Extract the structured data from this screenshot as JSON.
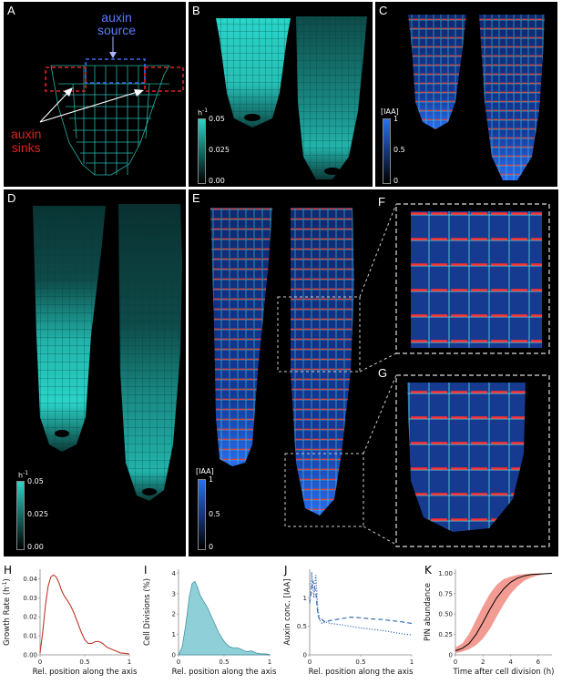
{
  "panels": {
    "A": {
      "label": "A",
      "auxin_source": [
        "auxin",
        "source"
      ],
      "auxin_sinks": [
        "auxin",
        "sinks"
      ]
    },
    "B": {
      "label": "B",
      "colorbar_title": "h",
      "colorbar_sup": "-1",
      "ticks": [
        "0.05",
        "0.025",
        "0.00"
      ]
    },
    "C": {
      "label": "C",
      "colorbar_title": "[IAA]",
      "ticks": [
        "1",
        "0.5",
        "0"
      ]
    },
    "D": {
      "label": "D",
      "colorbar_title": "h",
      "colorbar_sup": "-1",
      "ticks": [
        "0.05",
        "0.025",
        "0.00"
      ]
    },
    "E": {
      "label": "E",
      "colorbar_title": "[IAA]",
      "ticks": [
        "1",
        "0.5",
        "0"
      ]
    },
    "F": {
      "label": "F"
    },
    "G": {
      "label": "G"
    }
  },
  "colors": {
    "cyan": "#2ad4c8",
    "blue": "#1e5ad8",
    "red_box": "#e02020",
    "blue_box": "#3c6cf0",
    "red_line": "#c0392b",
    "teal_fill": "#8ecfd8",
    "blue_line": "#3a6fb0"
  },
  "chart_data": [
    {
      "id": "H",
      "label": "H",
      "type": "line",
      "xlabel": "Rel. position along the axis",
      "ylabel": "Growth Rate (h",
      "ylabel_sup": "-1",
      "ylabel_tail": ")",
      "xlim": [
        0,
        1
      ],
      "ylim": [
        0,
        0.045
      ],
      "xticks": [
        "0",
        "0.5",
        "1"
      ],
      "yticks": [
        "0.00",
        "0.01",
        "0.02",
        "0.03",
        "0.04"
      ],
      "series": [
        {
          "x": [
            0,
            0.03,
            0.06,
            0.09,
            0.12,
            0.15,
            0.18,
            0.21,
            0.24,
            0.27,
            0.3,
            0.34,
            0.38,
            0.42,
            0.46,
            0.5,
            0.54,
            0.58,
            0.62,
            0.66,
            0.7,
            0.75,
            0.8,
            0.85,
            0.9,
            0.95,
            1.0
          ],
          "y": [
            0.001,
            0.012,
            0.026,
            0.036,
            0.041,
            0.042,
            0.041,
            0.038,
            0.034,
            0.031,
            0.029,
            0.026,
            0.022,
            0.017,
            0.012,
            0.008,
            0.006,
            0.006,
            0.007,
            0.007,
            0.006,
            0.004,
            0.003,
            0.002,
            0.001,
            0.0008,
            0.0005
          ]
        }
      ]
    },
    {
      "id": "I",
      "label": "I",
      "type": "area",
      "xlabel": "Rel. position along the axis",
      "ylabel": "Cell Divisions (%)",
      "xlim": [
        0,
        1
      ],
      "ylim": [
        0,
        4.2
      ],
      "xticks": [
        "0",
        "0.5",
        "1"
      ],
      "yticks": [
        "0",
        "1",
        "2",
        "3",
        "4"
      ],
      "series": [
        {
          "x": [
            0,
            0.04,
            0.08,
            0.12,
            0.15,
            0.18,
            0.21,
            0.24,
            0.28,
            0.32,
            0.36,
            0.4,
            0.44,
            0.48,
            0.52,
            0.56,
            0.6,
            0.65,
            0.7,
            0.75,
            0.8,
            0.85,
            0.9,
            0.95,
            1.0
          ],
          "y": [
            0.0,
            0.4,
            1.5,
            2.9,
            3.5,
            3.6,
            3.3,
            2.9,
            2.6,
            2.3,
            1.9,
            1.5,
            1.1,
            0.8,
            0.55,
            0.4,
            0.35,
            0.35,
            0.25,
            0.15,
            0.2,
            0.1,
            0.05,
            0.05,
            0.02
          ]
        }
      ]
    },
    {
      "id": "J",
      "label": "J",
      "type": "line",
      "xlabel": "Rel. position along the axis",
      "ylabel": "Auxin conc. [IAA]",
      "xlim": [
        0,
        1
      ],
      "ylim": [
        0,
        1.5
      ],
      "xticks": [
        "0",
        "0.5",
        "1"
      ],
      "yticks": [
        "0",
        "0.5",
        "1"
      ],
      "series": [
        {
          "style": "dashed",
          "x": [
            0,
            0.03,
            0.06,
            0.08,
            0.1,
            0.12,
            0.15,
            0.2,
            0.3,
            0.4,
            0.5,
            0.6,
            0.7,
            0.8,
            0.9,
            1.0
          ],
          "y": [
            0.9,
            1.3,
            1.1,
            0.7,
            0.6,
            0.62,
            0.58,
            0.6,
            0.63,
            0.66,
            0.65,
            0.63,
            0.62,
            0.6,
            0.58,
            0.55
          ]
        },
        {
          "style": "dotted",
          "x": [
            0,
            0.02,
            0.04,
            0.06,
            0.08,
            0.1,
            0.12,
            0.15,
            0.2,
            0.3,
            0.4,
            0.5,
            0.6,
            0.7,
            0.8,
            0.9,
            1.0
          ],
          "y": [
            0.95,
            1.45,
            1.0,
            1.4,
            0.8,
            0.6,
            0.55,
            0.58,
            0.55,
            0.53,
            0.5,
            0.47,
            0.45,
            0.43,
            0.4,
            0.37,
            0.35
          ]
        }
      ]
    },
    {
      "id": "K",
      "label": "K",
      "type": "line",
      "xlabel": "Time after cell division (h)",
      "ylabel": "PIN abundance",
      "xlim": [
        0,
        7
      ],
      "ylim": [
        0,
        1.05
      ],
      "xticks": [
        "0",
        "2",
        "4",
        "6"
      ],
      "yticks": [
        "0",
        "0.25",
        "0.50",
        "0.75",
        "1.00"
      ],
      "series": [
        {
          "x": [
            0,
            0.5,
            1,
            1.5,
            2,
            2.5,
            3,
            3.5,
            4,
            4.5,
            5,
            5.5,
            6,
            6.5,
            7
          ],
          "y": [
            0.05,
            0.08,
            0.14,
            0.25,
            0.4,
            0.56,
            0.7,
            0.81,
            0.89,
            0.94,
            0.97,
            0.985,
            0.99,
            0.995,
            1.0
          ],
          "band_upper": [
            0.09,
            0.14,
            0.26,
            0.43,
            0.6,
            0.75,
            0.86,
            0.93,
            0.96,
            0.98,
            0.99,
            0.995,
            1.0,
            1.0,
            1.0
          ],
          "band_lower": [
            0.02,
            0.04,
            0.07,
            0.12,
            0.2,
            0.32,
            0.47,
            0.62,
            0.75,
            0.84,
            0.91,
            0.95,
            0.975,
            0.99,
            0.995
          ]
        }
      ]
    }
  ]
}
